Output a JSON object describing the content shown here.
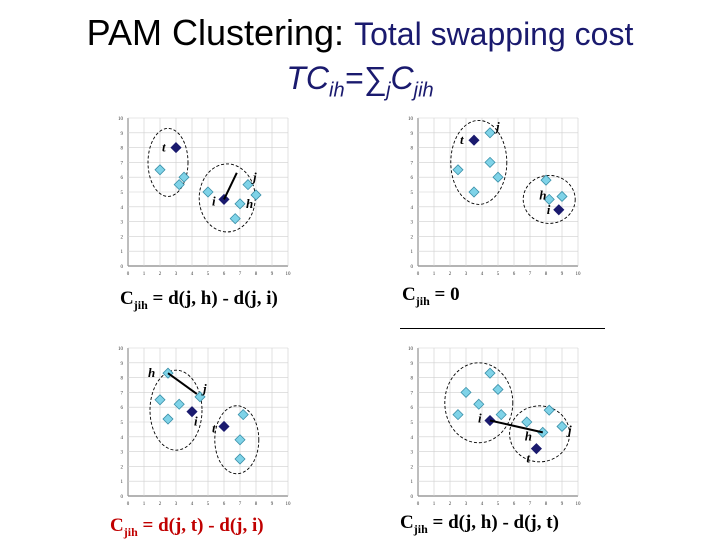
{
  "title": {
    "main": "PAM Clustering:",
    "sub": "Total swapping cost",
    "formula_tc": "TC",
    "formula_tc_sub": "ih",
    "formula_eq": "=",
    "formula_sum": "∑",
    "formula_sum_sub": "j",
    "formula_c": "C",
    "formula_c_sub": "jih"
  },
  "panels": [
    {
      "formula_lhs": "C",
      "formula_sub": "jih",
      "formula_rhs": " = d(j, h) - d(j, i)",
      "formula_color": "#000000",
      "labels": {
        "t": "t",
        "i": "i",
        "j": "j",
        "h": "h"
      }
    },
    {
      "formula_lhs": "C",
      "formula_sub": "jih",
      "formula_rhs": " = 0",
      "formula_color": "#000000",
      "labels": {
        "t": "t",
        "i": "i",
        "j": "j",
        "h": "h"
      }
    },
    {
      "formula_lhs": "C",
      "formula_sub": "jih",
      "formula_rhs": " = d(j, t) - d(j, i)",
      "formula_color": "#c00000",
      "labels": {
        "t": "t",
        "i": "i",
        "j": "j",
        "h": "h"
      }
    },
    {
      "formula_lhs": "C",
      "formula_sub": "jih",
      "formula_rhs": " = d(j, h) - d(j, t)",
      "formula_color": "#000000",
      "labels": {
        "t": "t",
        "i": "i",
        "j": "j",
        "h": "h"
      }
    }
  ],
  "axis": {
    "x_ticks": [
      "0",
      "1",
      "2",
      "3",
      "4",
      "5",
      "6",
      "7",
      "8",
      "9",
      "10"
    ],
    "y_ticks": [
      "0",
      "1",
      "2",
      "3",
      "4",
      "5",
      "6",
      "7",
      "8",
      "9",
      "10"
    ]
  },
  "colors": {
    "object": "#7fd3e8",
    "medoid": "#1a1a6e",
    "cluster_border": "#000000"
  }
}
